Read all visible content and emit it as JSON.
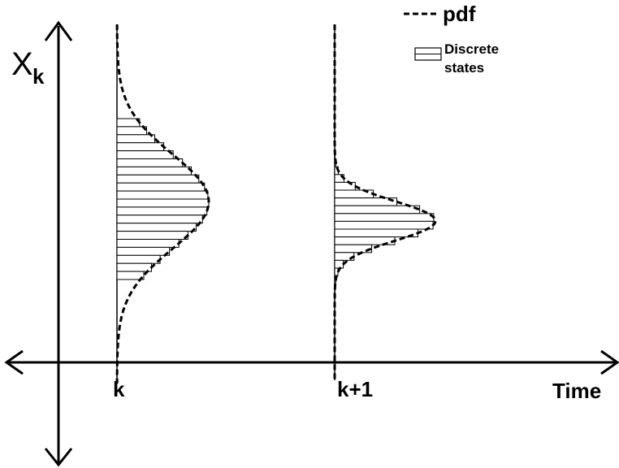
{
  "diagram": {
    "y_axis_label": "X",
    "y_axis_subscript": "k",
    "x_axis_label": "Time",
    "time_labels": [
      "k",
      "k+1"
    ],
    "legend": {
      "pdf_label": "pdf",
      "discrete_states_label_line1": "Discrete",
      "discrete_states_label_line2": "states"
    },
    "line_color": "#000000",
    "background_color": "#ffffff"
  }
}
